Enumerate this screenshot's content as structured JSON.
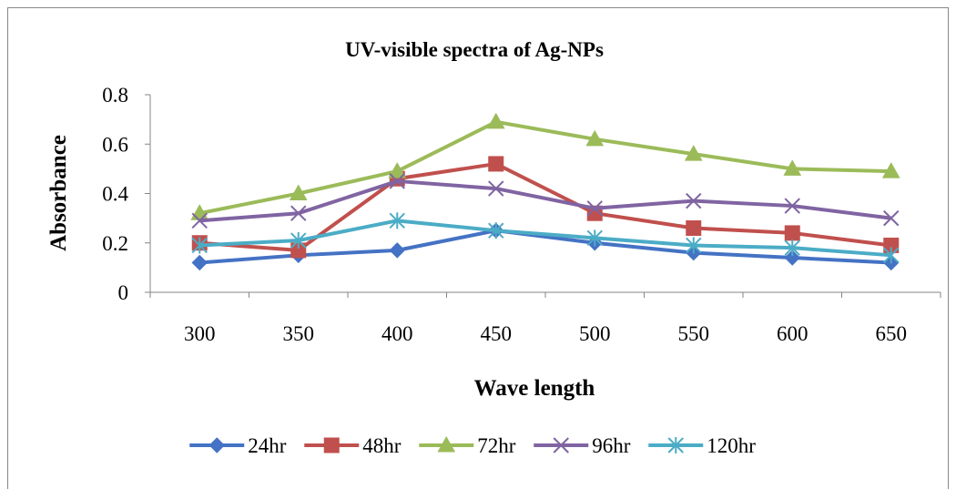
{
  "chart_data": {
    "type": "line",
    "title": "UV-visible spectra of Ag-NPs",
    "xlabel": "Wave length",
    "ylabel": "Absorbance",
    "categories": [
      "300",
      "350",
      "400",
      "450",
      "500",
      "550",
      "600",
      "650"
    ],
    "ylim": [
      0,
      0.8
    ],
    "yticks": [
      "0",
      "0.2",
      "0.4",
      "0.6",
      "0.8"
    ],
    "grid": false,
    "legend_position": "bottom",
    "series": [
      {
        "name": "24hr",
        "color": "#4472C4",
        "marker": "diamond",
        "values": [
          0.12,
          0.15,
          0.17,
          0.25,
          0.2,
          0.16,
          0.14,
          0.12
        ]
      },
      {
        "name": "48hr",
        "color": "#C0504D",
        "marker": "square",
        "values": [
          0.2,
          0.17,
          0.46,
          0.52,
          0.32,
          0.26,
          0.24,
          0.19
        ]
      },
      {
        "name": "72hr",
        "color": "#9BBB59",
        "marker": "triangle",
        "values": [
          0.32,
          0.4,
          0.49,
          0.69,
          0.62,
          0.56,
          0.5,
          0.49
        ]
      },
      {
        "name": "96hr",
        "color": "#8064A2",
        "marker": "x",
        "values": [
          0.29,
          0.32,
          0.45,
          0.42,
          0.34,
          0.37,
          0.35,
          0.3
        ]
      },
      {
        "name": "120hr",
        "color": "#4BACC6",
        "marker": "star",
        "values": [
          0.19,
          0.21,
          0.29,
          0.25,
          0.22,
          0.19,
          0.18,
          0.15
        ]
      }
    ]
  }
}
